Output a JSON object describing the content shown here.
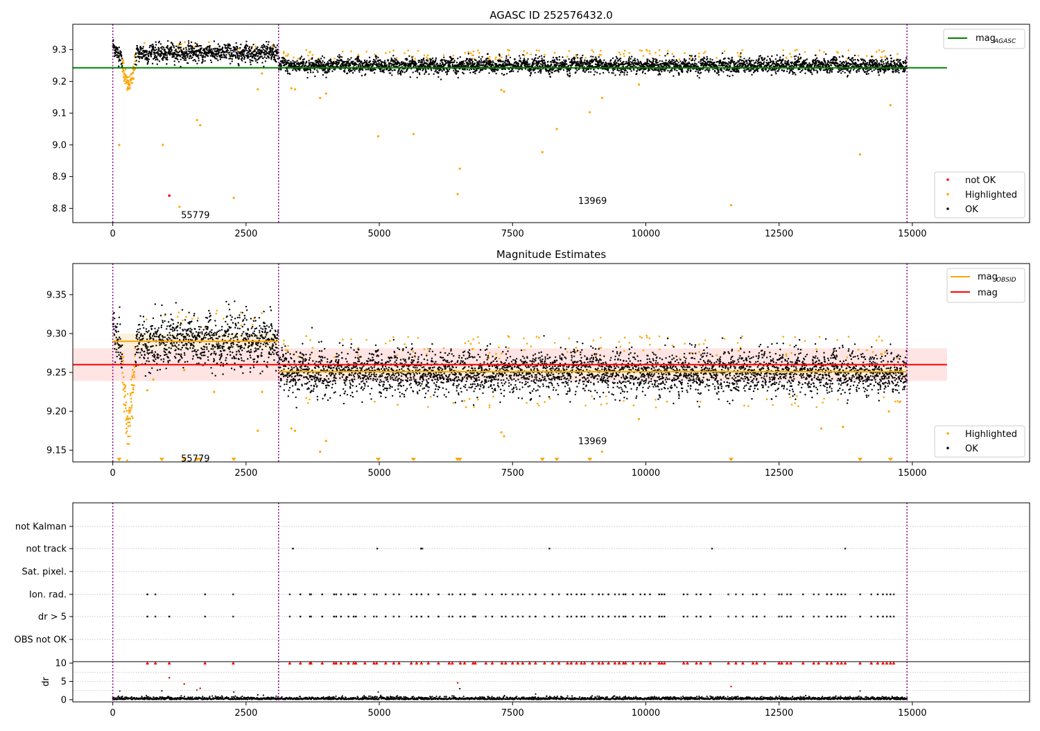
{
  "colors": {
    "ok": "#000000",
    "highlighted": "#ffa500",
    "not_ok": "#ff0000",
    "mag_agasc_line": "#008000",
    "mag_obsid_line": "#ffa500",
    "mag_line": "#ff0000",
    "obsid_boundary": "#800080",
    "band_red": "#ffe4e4",
    "band_orange": "#fdf0dc"
  },
  "chart_data": [
    {
      "type": "scatter",
      "title": "AGASC ID 252576432.0",
      "xlim": [
        -750,
        17200
      ],
      "ylim": [
        8.755,
        9.38
      ],
      "x_ticks": [
        0,
        2500,
        5000,
        7500,
        10000,
        12500,
        15000
      ],
      "x_tick_labels": [
        "0",
        "2500",
        "5000",
        "7500",
        "10000",
        "12500",
        "15000"
      ],
      "y_ticks": [
        8.8,
        8.9,
        9.0,
        9.1,
        9.2,
        9.3
      ],
      "y_tick_labels": [
        "8.8",
        "8.9",
        "9.0",
        "9.1",
        "9.2",
        "9.3"
      ],
      "obsid_boundaries": [
        0,
        3110,
        14900
      ],
      "annotations": [
        {
          "text": "55779",
          "x": 1550,
          "y": 8.78
        },
        {
          "text": "13969",
          "x": 9000,
          "y": 8.825
        }
      ],
      "reference_lines": [
        {
          "name": "mag",
          "subscript": "AGASC",
          "y": 9.243,
          "x_range": [
            -750,
            15650
          ],
          "color": "#008000"
        }
      ],
      "legend_top": {
        "placement": "top-right",
        "entries": [
          {
            "name": "mag",
            "subscript": "AGASC"
          }
        ]
      },
      "legend_bottom": {
        "placement": "bottom-right",
        "entries": [
          "not OK",
          "Highlighted",
          "OK"
        ]
      },
      "segments": [
        {
          "x_range": [
            0,
            3110
          ],
          "level": 9.29,
          "spread": 0.013
        },
        {
          "x_range": [
            3110,
            14900
          ],
          "level": 9.25,
          "spread": 0.011
        }
      ],
      "dip": {
        "x_range": [
          150,
          450
        ],
        "min": 9.195
      },
      "highlighted_outliers": [
        [
          120,
          9.0
        ],
        [
          940,
          9.0
        ],
        [
          1250,
          8.805
        ],
        [
          1580,
          9.078
        ],
        [
          1640,
          9.062
        ],
        [
          2270,
          8.833
        ],
        [
          2720,
          9.175
        ],
        [
          2800,
          9.225
        ],
        [
          3350,
          9.178
        ],
        [
          3420,
          9.175
        ],
        [
          3890,
          9.148
        ],
        [
          4000,
          9.162
        ],
        [
          4980,
          9.027
        ],
        [
          5640,
          9.034
        ],
        [
          6470,
          8.845
        ],
        [
          6510,
          8.925
        ],
        [
          7290,
          9.173
        ],
        [
          7340,
          9.168
        ],
        [
          8060,
          8.977
        ],
        [
          8330,
          9.05
        ],
        [
          8950,
          9.103
        ],
        [
          9180,
          9.148
        ],
        [
          9870,
          9.19
        ],
        [
          11600,
          8.81
        ],
        [
          14020,
          8.97
        ],
        [
          14590,
          9.125
        ]
      ],
      "not_ok_points": [
        [
          1060,
          8.84
        ]
      ]
    },
    {
      "type": "scatter",
      "title": "Magnitude Estimates",
      "xlim": [
        -750,
        17200
      ],
      "ylim": [
        9.135,
        9.39
      ],
      "x_ticks": [
        0,
        2500,
        5000,
        7500,
        10000,
        12500,
        15000
      ],
      "x_tick_labels": [
        "0",
        "2500",
        "5000",
        "7500",
        "10000",
        "12500",
        "15000"
      ],
      "y_ticks": [
        9.15,
        9.2,
        9.25,
        9.3,
        9.35
      ],
      "y_tick_labels": [
        "9.15",
        "9.20",
        "9.25",
        "9.30",
        "9.35"
      ],
      "obsid_boundaries": [
        0,
        3110,
        14900
      ],
      "annotations": [
        {
          "text": "55779",
          "x": 1550,
          "y": 9.14
        },
        {
          "text": "13969",
          "x": 9000,
          "y": 9.162
        }
      ],
      "mag_band": {
        "y_range": [
          9.239,
          9.281
        ],
        "x_range": [
          -750,
          15650
        ]
      },
      "reference_lines": [
        {
          "name": "mag",
          "y": 9.26,
          "x_range": [
            -750,
            15650
          ],
          "color": "#ff0000"
        }
      ],
      "obsid_mags": [
        {
          "x_range": [
            0,
            3110
          ],
          "y": 9.29,
          "band": [
            9.28,
            9.3
          ]
        },
        {
          "x_range": [
            3110,
            14900
          ],
          "y": 9.251,
          "band": [
            9.245,
            9.257
          ]
        }
      ],
      "legend_top": {
        "placement": "top-right",
        "entries": [
          {
            "name": "mag",
            "subscript": "OBSID"
          },
          {
            "name": "mag",
            "subscript": ""
          }
        ]
      },
      "legend_bottom": {
        "placement": "bottom-right",
        "entries": [
          "Highlighted",
          "OK"
        ]
      },
      "segments": [
        {
          "x_range": [
            0,
            3110
          ],
          "level": 9.29,
          "spread": 0.016
        },
        {
          "x_range": [
            3110,
            14900
          ],
          "level": 9.25,
          "spread": 0.013
        }
      ],
      "dip": {
        "x_range": [
          150,
          450
        ],
        "min": 9.195
      },
      "highlighted_outliers": [
        [
          650,
          9.227
        ],
        [
          760,
          9.241
        ],
        [
          1340,
          9.253
        ],
        [
          1900,
          9.225
        ],
        [
          2720,
          9.175
        ],
        [
          2800,
          9.225
        ],
        [
          3350,
          9.178
        ],
        [
          3420,
          9.175
        ],
        [
          3890,
          9.148
        ],
        [
          4000,
          9.162
        ],
        [
          7290,
          9.173
        ],
        [
          7340,
          9.168
        ],
        [
          9180,
          9.148
        ],
        [
          9870,
          9.19
        ],
        [
          13290,
          9.178
        ],
        [
          13700,
          9.18
        ],
        [
          14560,
          9.2
        ]
      ],
      "clipped_markers_x": [
        120,
        920,
        1340,
        1580,
        1640,
        2270,
        4980,
        5640,
        6470,
        6510,
        8060,
        8330,
        8950,
        11600,
        14020,
        14590
      ]
    },
    {
      "type": "scatter",
      "title": "",
      "xlim": [
        -750,
        17200
      ],
      "y_categories": [
        "not Kalman",
        "not track",
        "Sat. pixel.",
        "Ion. rad.",
        "dr > 5",
        "OBS not OK"
      ],
      "obsid_boundaries": [
        0,
        3110,
        14900
      ],
      "flags": {
        "not Kalman": [],
        "not track": [
          3380,
          4960,
          5780,
          5810,
          8190,
          11240,
          13740
        ],
        "Sat. pixel.": [],
        "Ion. rad.": [
          650,
          800,
          1730,
          2260,
          3320,
          3520,
          3700,
          3720,
          3930,
          4150,
          4190,
          4280,
          4420,
          4520,
          4560,
          4730,
          4900,
          4950,
          5120,
          5270,
          5370,
          5600,
          5700,
          5790,
          5920,
          6110,
          6310,
          6370,
          6520,
          6600,
          6760,
          6800,
          7000,
          7120,
          7300,
          7370,
          7500,
          7600,
          7690,
          7820,
          7930,
          8100,
          8250,
          8370,
          8530,
          8600,
          8700,
          8790,
          8850,
          9000,
          9120,
          9190,
          9300,
          9420,
          9500,
          9580,
          9620,
          9760,
          9900,
          9980,
          10080,
          10250,
          10300,
          10350,
          10710,
          10780,
          10950,
          11030,
          11210,
          11550,
          11690,
          11820,
          12010,
          12080,
          12230,
          12500,
          12550,
          12650,
          12720,
          12950,
          13150,
          13240,
          13400,
          13480,
          13600,
          13670,
          13740,
          14020,
          14230,
          14350,
          14450,
          14520,
          14590,
          14650
        ],
        "dr > 5": [
          650,
          800,
          1060,
          1730,
          2260,
          3320,
          3520,
          3700,
          3720,
          3930,
          4150,
          4190,
          4280,
          4420,
          4520,
          4560,
          4730,
          4900,
          4950,
          5120,
          5270,
          5370,
          5600,
          5700,
          5790,
          5920,
          6110,
          6310,
          6370,
          6520,
          6600,
          6760,
          6800,
          7000,
          7120,
          7300,
          7370,
          7500,
          7600,
          7690,
          7820,
          7930,
          8100,
          8250,
          8370,
          8530,
          8600,
          8700,
          8790,
          8850,
          9000,
          9120,
          9190,
          9300,
          9420,
          9500,
          9580,
          9620,
          9760,
          9900,
          9980,
          10080,
          10250,
          10300,
          10350,
          10710,
          10780,
          10950,
          11030,
          11210,
          11550,
          11690,
          11820,
          12010,
          12080,
          12230,
          12500,
          12550,
          12650,
          12720,
          12950,
          13150,
          13240,
          13400,
          13480,
          13600,
          13670,
          13740,
          14020,
          14230,
          14350,
          14450,
          14520,
          14590,
          14650
        ],
        "OBS not OK": []
      }
    },
    {
      "type": "scatter",
      "title": "",
      "ylabel": "dr",
      "xlim": [
        -750,
        17200
      ],
      "ylim": [
        -0.6,
        10.4
      ],
      "x_ticks": [
        0,
        2500,
        5000,
        7500,
        10000,
        12500,
        15000
      ],
      "x_tick_labels": [
        "0",
        "2500",
        "5000",
        "7500",
        "10000",
        "12500",
        "15000"
      ],
      "y_ticks": [
        0,
        5,
        10
      ],
      "y_tick_labels": [
        "0",
        "5",
        "10"
      ],
      "obsid_boundaries": [
        0,
        3110,
        14900
      ],
      "clip_value": 10,
      "dr_scatter_points": [
        [
          130,
          2.4
        ],
        [
          920,
          2.4
        ],
        [
          1060,
          6.0
        ],
        [
          1340,
          4.3
        ],
        [
          1580,
          2.6
        ],
        [
          1640,
          3.1
        ],
        [
          2270,
          2.1
        ],
        [
          2720,
          1.3
        ],
        [
          4980,
          2.1
        ],
        [
          6470,
          4.6
        ],
        [
          6510,
          3.0
        ],
        [
          11600,
          3.6
        ],
        [
          14020,
          2.4
        ],
        [
          13000,
          1.1
        ]
      ]
    }
  ]
}
